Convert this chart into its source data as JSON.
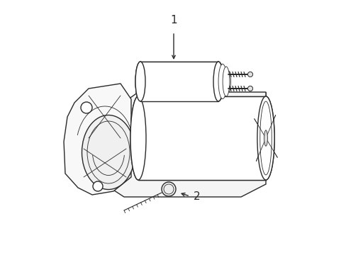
{
  "bg_color": "#ffffff",
  "line_color": "#2a2a2a",
  "fill_color": "#ffffff",
  "label1": "1",
  "label2": "2",
  "figsize": [
    4.89,
    3.6
  ],
  "dpi": 100,
  "lw_main": 1.0,
  "lw_thin": 0.6
}
